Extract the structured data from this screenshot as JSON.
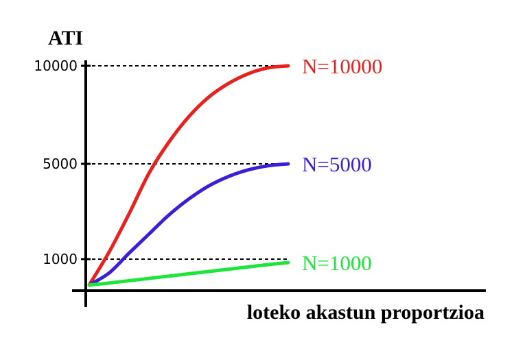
{
  "chart_data": {
    "type": "line",
    "title": "",
    "xlabel": "loteko akastun proportzioa",
    "ylabel": "ATI",
    "yticks": [
      1000,
      5000,
      10000
    ],
    "ytick_labels": [
      "1000",
      "5000",
      "10000"
    ],
    "ylim": [
      0,
      10000
    ],
    "xlim": [
      0,
      1
    ],
    "grid": "dashed reference lines at y ticks",
    "series": [
      {
        "name": "N=10000",
        "color": "#e8201e",
        "x": [
          0,
          0.1,
          0.2,
          0.3,
          0.4,
          0.5,
          0.6,
          0.7,
          0.8,
          0.9,
          1.0
        ],
        "y": [
          100,
          1300,
          2900,
          4600,
          6100,
          7400,
          8400,
          9100,
          9600,
          9900,
          10000
        ]
      },
      {
        "name": "N=5000",
        "color": "#3a1fd6",
        "x": [
          0,
          0.1,
          0.2,
          0.3,
          0.4,
          0.5,
          0.6,
          0.7,
          0.8,
          0.9,
          1.0
        ],
        "y": [
          100,
          520,
          1250,
          2050,
          2850,
          3520,
          4070,
          4470,
          4750,
          4920,
          5000
        ]
      },
      {
        "name": "N=1000",
        "color": "#1de53a",
        "x": [
          0,
          0.1,
          0.2,
          0.3,
          0.4,
          0.5,
          0.6,
          0.7,
          0.8,
          0.9,
          1.0
        ],
        "y": [
          100,
          170,
          250,
          330,
          410,
          490,
          570,
          650,
          730,
          810,
          880
        ]
      }
    ]
  }
}
